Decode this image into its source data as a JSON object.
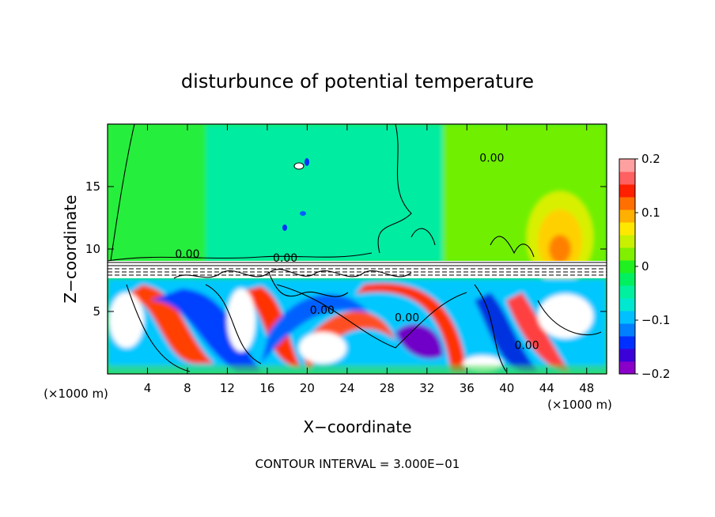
{
  "chart_data": {
    "type": "heatmap",
    "title": "disturbunce of potential temperature",
    "xlabel": "X−coordinate",
    "ylabel": "Z−coordinate",
    "x_unit_left": "(×1000 m)",
    "x_unit_right": "(×1000 m)",
    "footer": "CONTOUR INTERVAL = 3.000E−01",
    "xlim": [
      0,
      50
    ],
    "ylim": [
      0,
      20
    ],
    "x_ticks": [
      4,
      8,
      12,
      16,
      20,
      24,
      28,
      32,
      36,
      40,
      44,
      48
    ],
    "y_ticks": [
      5,
      10,
      15
    ],
    "colorbar": {
      "range": [
        -0.2,
        0.2
      ],
      "tick_values": [
        0.2,
        0.1,
        0,
        -0.1,
        -0.2
      ],
      "tick_labels": [
        "0.2",
        "0.1",
        "0",
        "−0.1",
        "−0.2"
      ],
      "colors": [
        "#8a00c8",
        "#3c00d8",
        "#0030ff",
        "#0080ff",
        "#00c0ff",
        "#00e8d0",
        "#00f0a0",
        "#00f060",
        "#20f020",
        "#80f000",
        "#c8f000",
        "#ffe800",
        "#ffb000",
        "#ff7000",
        "#ff2000",
        "#ff6060",
        "#ffa0a0"
      ]
    },
    "contour_labels": [
      {
        "text": "0.00",
        "x": 17.8,
        "y": 9.0
      },
      {
        "text": "0.00",
        "x": 21.5,
        "y": 4.8
      },
      {
        "text": "0.00",
        "x": 30.0,
        "y": 4.2
      },
      {
        "text": "0.00",
        "x": 38.5,
        "y": 17.0
      },
      {
        "text": "0.00",
        "x": 42.0,
        "y": 2.0
      },
      {
        "text": "0.00",
        "x": 8.0,
        "y": 9.3
      }
    ],
    "grid": false,
    "legend": "right"
  }
}
